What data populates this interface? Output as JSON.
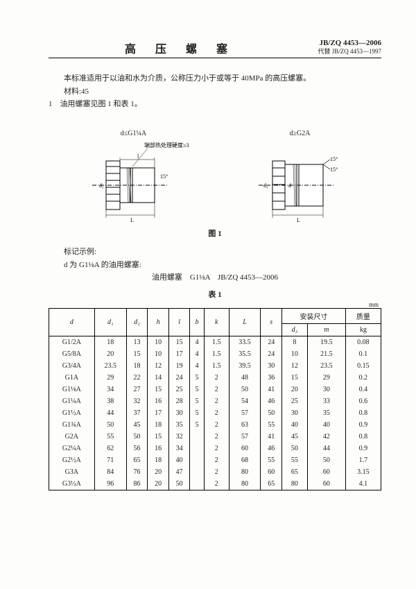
{
  "header": {
    "title": "高 压 螺 塞",
    "std_no": "JB/ZQ 4453—2006",
    "replaces": "代替 JB/ZQ 4453—1997"
  },
  "intro": {
    "line1": "本标准适用于以油和水为介质，公称压力小于或等于 40MPa 的高压螺塞。",
    "line2": "材料:45",
    "line3": "1　油用螺塞见图 1 和表 1。"
  },
  "figure": {
    "left_label": "d≤G1¼A",
    "right_label": "d≥G2A",
    "hardness_note": "端部热处理硬度≥330HV",
    "caption": "图 1"
  },
  "mark": {
    "heading": "标记示例:",
    "line": "d 为 G1⅛A 的油用螺塞:",
    "spec": "油用螺塞　G1⅛A　JB/ZQ 4453—2006"
  },
  "table": {
    "caption": "表 1",
    "unit": "mm",
    "headers": {
      "d": "d",
      "d1": "d₁",
      "d2": "d₂",
      "h": "h",
      "l": "l",
      "b": "b",
      "k": "k",
      "L": "L",
      "s": "s",
      "install": "安装尺寸",
      "d3": "d₃",
      "m": "m",
      "mass": "质量",
      "mass_unit": "kg"
    },
    "rows": [
      {
        "d": "G1/2A",
        "d1": "18",
        "d2": "13",
        "h": "10",
        "l": "15",
        "b": "4",
        "k": "1.5",
        "L": "33.5",
        "s": "24",
        "d3": "8",
        "m": "19.5",
        "mass": "0.08"
      },
      {
        "d": "G5/8A",
        "d1": "20",
        "d2": "15",
        "h": "10",
        "l": "17",
        "b": "4",
        "k": "1.5",
        "L": "35.5",
        "s": "24",
        "d3": "10",
        "m": "21.5",
        "mass": "0.1"
      },
      {
        "d": "G3/4A",
        "d1": "23.5",
        "d2": "18",
        "h": "12",
        "l": "19",
        "b": "4",
        "k": "1.5",
        "L": "39.5",
        "s": "30",
        "d3": "12",
        "m": "23.5",
        "mass": "0.15"
      },
      {
        "d": "G1A",
        "d1": "29",
        "d2": "22",
        "h": "14",
        "l": "24",
        "b": "5",
        "k": "2",
        "L": "48",
        "s": "36",
        "d3": "15",
        "m": "29",
        "mass": "0.2"
      },
      {
        "d": "G1⅛A",
        "d1": "34",
        "d2": "27",
        "h": "15",
        "l": "25",
        "b": "5",
        "k": "2",
        "L": "50",
        "s": "41",
        "d3": "20",
        "m": "30",
        "mass": "0.4"
      },
      {
        "d": "G1¼A",
        "d1": "38",
        "d2": "32",
        "h": "16",
        "l": "28",
        "b": "5",
        "k": "2",
        "L": "54",
        "s": "46",
        "d3": "25",
        "m": "33",
        "mass": "0.6"
      },
      {
        "d": "G1½A",
        "d1": "44",
        "d2": "37",
        "h": "17",
        "l": "30",
        "b": "5",
        "k": "2",
        "L": "57",
        "s": "50",
        "d3": "30",
        "m": "35",
        "mass": "0.8"
      },
      {
        "d": "G1¾A",
        "d1": "50",
        "d2": "45",
        "h": "18",
        "l": "35",
        "b": "5",
        "k": "2",
        "L": "63",
        "s": "55",
        "d3": "40",
        "m": "40",
        "mass": "0.9"
      },
      {
        "d": "G2A",
        "d1": "55",
        "d2": "50",
        "h": "15",
        "l": "32",
        "b": "",
        "k": "2",
        "L": "57",
        "s": "41",
        "d3": "45",
        "m": "42",
        "mass": "0.8"
      },
      {
        "d": "G2¼A",
        "d1": "62",
        "d2": "56",
        "h": "16",
        "l": "34",
        "b": "",
        "k": "2",
        "L": "60",
        "s": "46",
        "d3": "50",
        "m": "44",
        "mass": "0.9"
      },
      {
        "d": "G2½A",
        "d1": "71",
        "d2": "65",
        "h": "18",
        "l": "40",
        "b": "",
        "k": "2",
        "L": "68",
        "s": "55",
        "d3": "55",
        "m": "50",
        "mass": "1.7"
      },
      {
        "d": "G3A",
        "d1": "84",
        "d2": "76",
        "h": "20",
        "l": "47",
        "b": "",
        "k": "2",
        "L": "80",
        "s": "60",
        "d3": "65",
        "m": "60",
        "mass": "3.15"
      },
      {
        "d": "G3½A",
        "d1": "96",
        "d2": "86",
        "h": "20",
        "l": "50",
        "b": "",
        "k": "2",
        "L": "80",
        "s": "65",
        "d3": "80",
        "m": "60",
        "mass": "4.1"
      }
    ]
  }
}
